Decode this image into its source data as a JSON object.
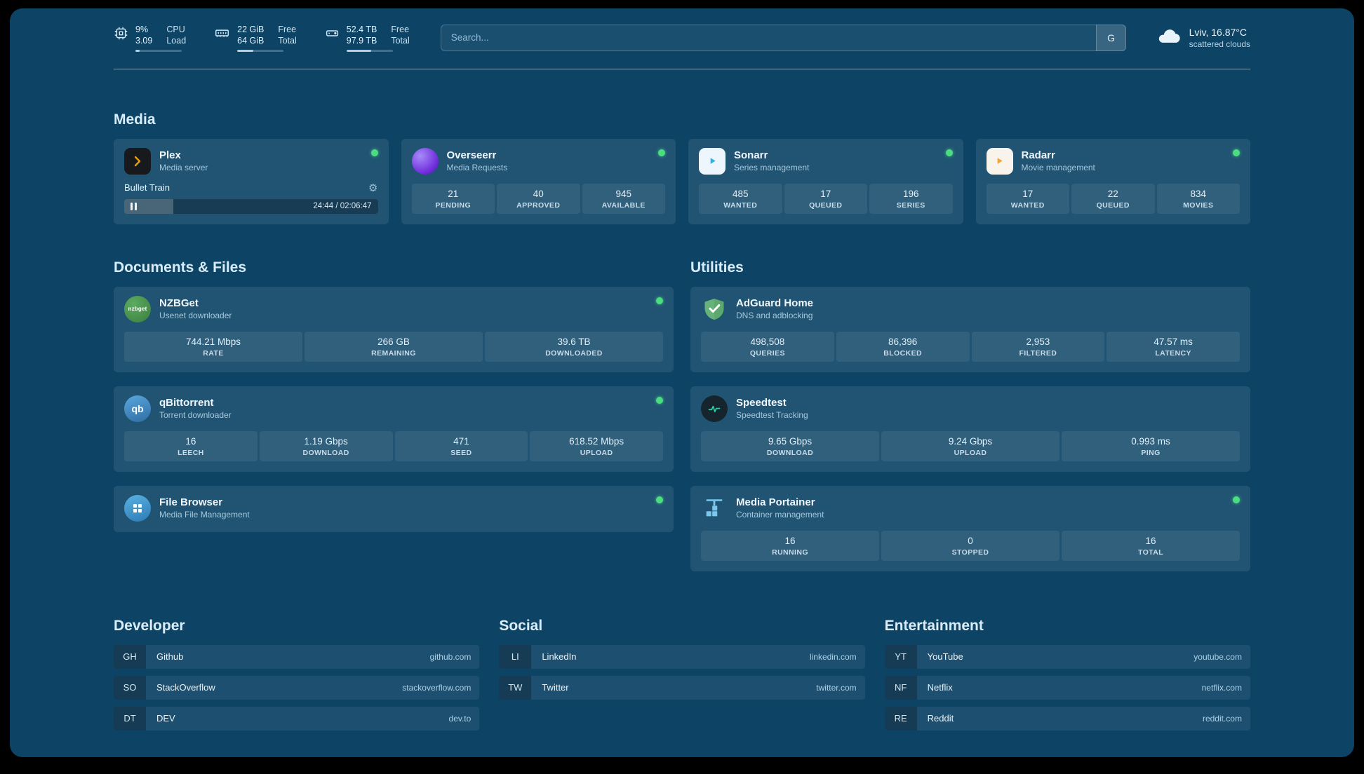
{
  "colors": {
    "background": "#0d4466",
    "status_ok": "#4ade80",
    "plex_orange": "#e5a00d",
    "sonarr_blue": "#2bb3e8",
    "radarr_gold": "#f2a33c",
    "nzbget_green": "#3f8e3f",
    "qbittorrent_blue": "#2f7fc1",
    "filebrowser_blue": "#3b8ec6",
    "adguard_green": "#67b279",
    "speedtest_green": "#2dd4a7",
    "portainer_blue": "#79c8ef"
  },
  "icons": {
    "gear": "⚙",
    "cpu": "cpu-chip",
    "memory": "ram-stick",
    "disk": "hard-drive",
    "cloud": "cloud",
    "pause": "pause-bars",
    "search_provider": "google"
  },
  "topbar": {
    "resources": [
      {
        "value_top": "9%",
        "value_bottom": "3.09",
        "label_top": "CPU",
        "label_bottom": "Load",
        "progress": 9
      },
      {
        "value_top": "22 GiB",
        "value_bottom": "64 GiB",
        "label_top": "Free",
        "label_bottom": "Total",
        "progress": 34
      },
      {
        "value_top": "52.4 TB",
        "value_bottom": "97.9 TB",
        "label_top": "Free",
        "label_bottom": "Total",
        "progress": 54
      }
    ],
    "search": {
      "placeholder": "Search...",
      "provider_label": "G"
    },
    "weather": {
      "location": "Lviv, 16.87°C",
      "condition": "scattered clouds"
    }
  },
  "sections": {
    "media": {
      "title": "Media",
      "plex": {
        "name": "Plex",
        "subtitle": "Media server",
        "now_playing": "Bullet Train",
        "time": "24:44 / 02:06:47",
        "progress_percent": 19.5
      },
      "overseerr": {
        "name": "Overseerr",
        "subtitle": "Media Requests",
        "stats": [
          {
            "value": "21",
            "label": "PENDING"
          },
          {
            "value": "40",
            "label": "APPROVED"
          },
          {
            "value": "945",
            "label": "AVAILABLE"
          }
        ]
      },
      "sonarr": {
        "name": "Sonarr",
        "subtitle": "Series management",
        "stats": [
          {
            "value": "485",
            "label": "WANTED"
          },
          {
            "value": "17",
            "label": "QUEUED"
          },
          {
            "value": "196",
            "label": "SERIES"
          }
        ]
      },
      "radarr": {
        "name": "Radarr",
        "subtitle": "Movie management",
        "stats": [
          {
            "value": "17",
            "label": "WANTED"
          },
          {
            "value": "22",
            "label": "QUEUED"
          },
          {
            "value": "834",
            "label": "MOVIES"
          }
        ]
      }
    },
    "documents": {
      "title": "Documents & Files",
      "nzbget": {
        "name": "NZBGet",
        "subtitle": "Usenet downloader",
        "icon_text": "nzbget",
        "stats": [
          {
            "value": "744.21 Mbps",
            "label": "RATE"
          },
          {
            "value": "266 GB",
            "label": "REMAINING"
          },
          {
            "value": "39.6 TB",
            "label": "DOWNLOADED"
          }
        ]
      },
      "qbittorrent": {
        "name": "qBittorrent",
        "subtitle": "Torrent downloader",
        "icon_text": "qb",
        "stats": [
          {
            "value": "16",
            "label": "LEECH"
          },
          {
            "value": "1.19 Gbps",
            "label": "DOWNLOAD"
          },
          {
            "value": "471",
            "label": "SEED"
          },
          {
            "value": "618.52 Mbps",
            "label": "UPLOAD"
          }
        ]
      },
      "filebrowser": {
        "name": "File Browser",
        "subtitle": "Media File Management"
      }
    },
    "utilities": {
      "title": "Utilities",
      "adguard": {
        "name": "AdGuard Home",
        "subtitle": "DNS and adblocking",
        "stats": [
          {
            "value": "498,508",
            "label": "QUERIES"
          },
          {
            "value": "86,396",
            "label": "BLOCKED"
          },
          {
            "value": "2,953",
            "label": "FILTERED"
          },
          {
            "value": "47.57 ms",
            "label": "LATENCY"
          }
        ]
      },
      "speedtest": {
        "name": "Speedtest",
        "subtitle": "Speedtest Tracking",
        "stats": [
          {
            "value": "9.65 Gbps",
            "label": "DOWNLOAD"
          },
          {
            "value": "9.24 Gbps",
            "label": "UPLOAD"
          },
          {
            "value": "0.993 ms",
            "label": "PING"
          }
        ]
      },
      "portainer": {
        "name": "Media Portainer",
        "subtitle": "Container management",
        "stats": [
          {
            "value": "16",
            "label": "RUNNING"
          },
          {
            "value": "0",
            "label": "STOPPED"
          },
          {
            "value": "16",
            "label": "TOTAL"
          }
        ]
      }
    }
  },
  "bookmarks": {
    "developer": {
      "title": "Developer",
      "items": [
        {
          "abbr": "GH",
          "name": "Github",
          "url": "github.com"
        },
        {
          "abbr": "SO",
          "name": "StackOverflow",
          "url": "stackoverflow.com"
        },
        {
          "abbr": "DT",
          "name": "DEV",
          "url": "dev.to"
        }
      ]
    },
    "social": {
      "title": "Social",
      "items": [
        {
          "abbr": "LI",
          "name": "LinkedIn",
          "url": "linkedin.com"
        },
        {
          "abbr": "TW",
          "name": "Twitter",
          "url": "twitter.com"
        }
      ]
    },
    "entertainment": {
      "title": "Entertainment",
      "items": [
        {
          "abbr": "YT",
          "name": "YouTube",
          "url": "youtube.com"
        },
        {
          "abbr": "NF",
          "name": "Netflix",
          "url": "netflix.com"
        },
        {
          "abbr": "RE",
          "name": "Reddit",
          "url": "reddit.com"
        }
      ]
    }
  }
}
